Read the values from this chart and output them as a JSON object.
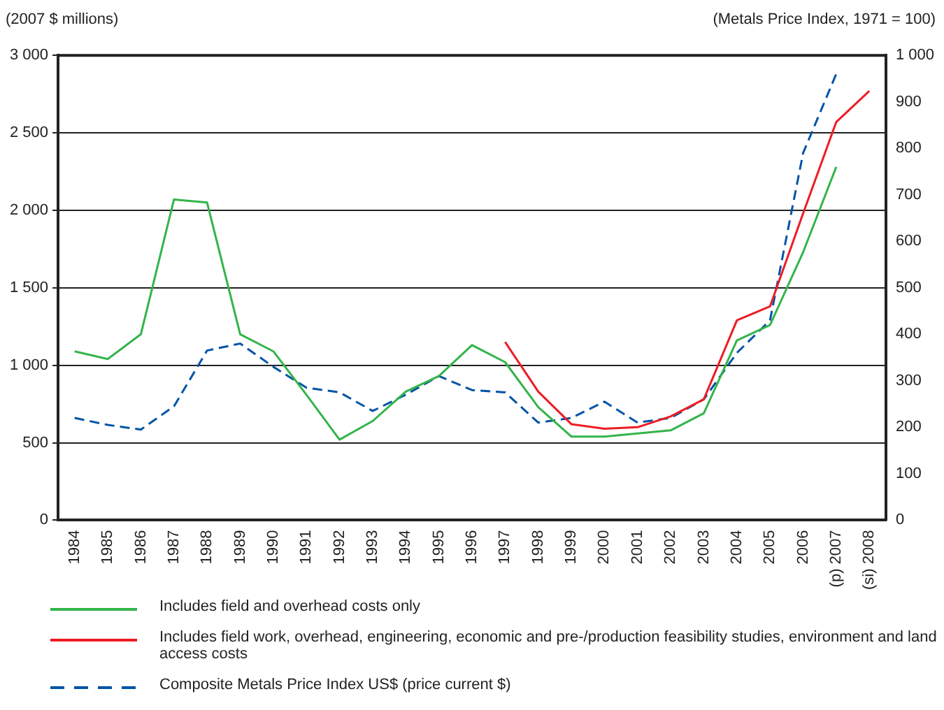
{
  "chart_data": {
    "type": "line",
    "ylabel": "(2007 $ millions)",
    "y2label": "(Metals Price Index, 1971 = 100)",
    "categories": [
      "1984",
      "1985",
      "1986",
      "1987",
      "1988",
      "1989",
      "1990",
      "1991",
      "1992",
      "1993",
      "1994",
      "1995",
      "1996",
      "1997",
      "1998",
      "1999",
      "2000",
      "2001",
      "2002",
      "2003",
      "2004",
      "2005",
      "2006",
      "(p) 2007",
      "(si) 2008"
    ],
    "series": [
      {
        "name": "Includes field and overhead costs only",
        "color": "#33b44a",
        "values": [
          1090,
          1040,
          1200,
          2070,
          2050,
          1200,
          1090,
          810,
          520,
          640,
          830,
          930,
          1130,
          1020,
          730,
          540,
          540,
          560,
          580,
          690,
          1160,
          1260,
          1730,
          2280,
          null
        ]
      },
      {
        "name": "Includes field work, overhead, engineering, economic and pre-/production feasibility studies, environment and land access costs",
        "color": "#ed1c24",
        "values": [
          null,
          null,
          null,
          null,
          null,
          null,
          null,
          null,
          null,
          null,
          null,
          null,
          null,
          1150,
          830,
          620,
          590,
          600,
          670,
          780,
          1290,
          1380,
          1980,
          2570,
          2770
        ]
      },
      {
        "name": "Composite Metals Price Index US$ (price current $)",
        "color": "#0054a6",
        "axis": "y2",
        "line_style": "dashed",
        "values": [
          220,
          205,
          195,
          245,
          365,
          380,
          330,
          285,
          275,
          235,
          270,
          310,
          280,
          275,
          210,
          220,
          255,
          210,
          220,
          260,
          360,
          430,
          790,
          960,
          null
        ]
      }
    ],
    "ylim": [
      0,
      3000
    ],
    "yticks": [
      0,
      {
        "value": 500,
        "label": "500"
      },
      {
        "value": 1000,
        "label": "1 000"
      },
      {
        "value": 1500,
        "label": "1 500"
      },
      {
        "value": 2000,
        "label": "2 000"
      },
      {
        "value": 2500,
        "label": "2 500"
      },
      {
        "value": 3000,
        "label": "3 000"
      }
    ],
    "y2lim": [
      0,
      1000
    ],
    "y2ticks": [
      0,
      100,
      200,
      300,
      400,
      500,
      600,
      700,
      800,
      900,
      {
        "value": 1000,
        "label": "1 000"
      }
    ],
    "grid": "y",
    "legend": "bottom",
    "marker": "none",
    "line_style": "solid"
  }
}
